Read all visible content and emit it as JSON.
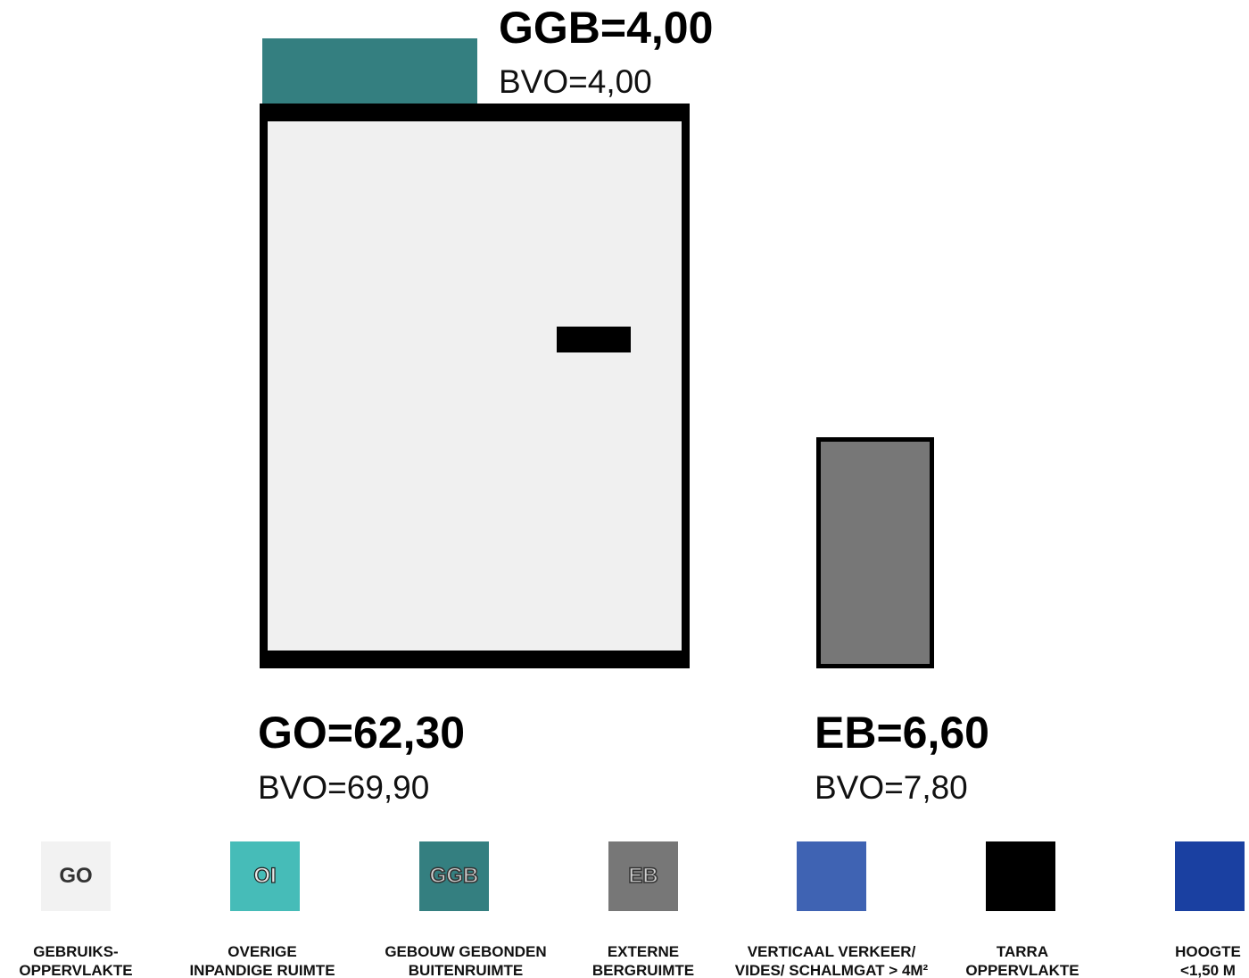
{
  "areas": {
    "ggb": {
      "title": "GGB=4,00",
      "bvo": "BVO=4,00"
    },
    "go": {
      "title": "GO=62,30",
      "bvo": "BVO=69,90"
    },
    "eb": {
      "title": "EB=6,60",
      "bvo": "BVO=7,80"
    }
  },
  "legend": [
    {
      "code": "GO",
      "color": "#f2f2f2",
      "line1": "GEBRUIKS-",
      "line2": "OPPERVLAKTE"
    },
    {
      "code": "OI",
      "color": "#46bcb8",
      "line1": "OVERIGE",
      "line2": "INPANDIGE RUIMTE"
    },
    {
      "code": "GGB",
      "color": "#347f80",
      "line1": "GEBOUW GEBONDEN",
      "line2": "BUITENRUIMTE"
    },
    {
      "code": "EB",
      "color": "#777777",
      "line1": "EXTERNE",
      "line2": "BERGRUIMTE"
    },
    {
      "code": "",
      "color": "#3f63b3",
      "line1": "VERTICAAL VERKEER/",
      "line2": "VIDES/ SCHALMGAT > 4M²"
    },
    {
      "code": "",
      "color": "#000000",
      "line1": "TARRA",
      "line2": "OPPERVLAKTE"
    },
    {
      "code": "",
      "color": "#1a40a1",
      "line1": "HOOGTE",
      "line2": "<1,50 M"
    }
  ]
}
